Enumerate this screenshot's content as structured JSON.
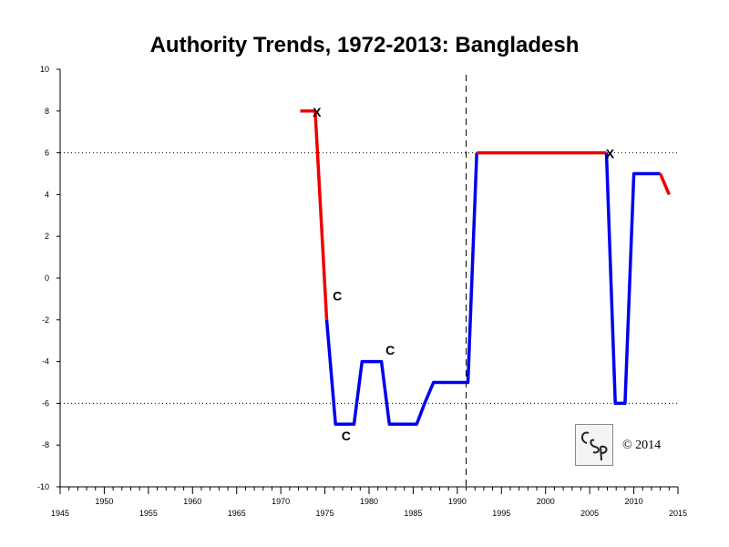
{
  "chart_data": {
    "type": "line",
    "title": "Authority Trends, 1972-2013: Bangladesh",
    "xlim": [
      1945,
      2015
    ],
    "ylim": [
      -10,
      10
    ],
    "x_ticks_top_row": [
      "1950",
      "1960",
      "1970",
      "1980",
      "1990",
      "2000",
      "2010"
    ],
    "x_ticks_bottom_row": [
      "1945",
      "1955",
      "1965",
      "1975",
      "1985",
      "1995",
      "2005",
      "2015"
    ],
    "y_ticks": [
      "10",
      "8",
      "6",
      "4",
      "2",
      "0",
      "-2",
      "-4",
      "-6",
      "-8",
      "-10"
    ],
    "reference_lines": [
      6,
      -6
    ],
    "vertical_marker_x": 1991,
    "colors": {
      "polity": "#0000ee",
      "transition": "#ee0000",
      "reference": "#000000"
    },
    "series": [
      {
        "style": "transition",
        "x": [
          1972.2,
          1973.9
        ],
        "y": [
          8,
          8
        ]
      },
      {
        "style": "transition",
        "x": [
          1973.9,
          1975.2
        ],
        "y": [
          8,
          -2
        ]
      },
      {
        "style": "polity",
        "x": [
          1975.2,
          1976.2,
          1978.3,
          1979.2,
          1981.4,
          1982.3,
          1985.4,
          1986.3,
          1987.3,
          1991.2,
          1992.2
        ],
        "y": [
          -2,
          -7,
          -7,
          -4,
          -4,
          -7,
          -7,
          -6,
          -5,
          -5,
          6
        ]
      },
      {
        "style": "transition",
        "x": [
          1992.2,
          2006.9
        ],
        "y": [
          6,
          6
        ]
      },
      {
        "style": "polity",
        "x": [
          2006.9,
          2007.9,
          2009.0,
          2010.0,
          2013.0
        ],
        "y": [
          6,
          -6,
          -6,
          5,
          5
        ]
      },
      {
        "style": "transition",
        "x": [
          2013.0,
          2014.0
        ],
        "y": [
          5,
          4
        ]
      }
    ],
    "annotations": [
      {
        "text": "X",
        "x": 1974.1,
        "y": 8
      },
      {
        "text": "C",
        "x": 1976.4,
        "y": -0.8
      },
      {
        "text": "C",
        "x": 1977.4,
        "y": -7.5
      },
      {
        "text": "C",
        "x": 1982.4,
        "y": -3.4
      },
      {
        "text": "X",
        "x": 2007.3,
        "y": 6
      }
    ]
  },
  "logo": {
    "text": "CSP"
  },
  "copyright": "© 2014"
}
